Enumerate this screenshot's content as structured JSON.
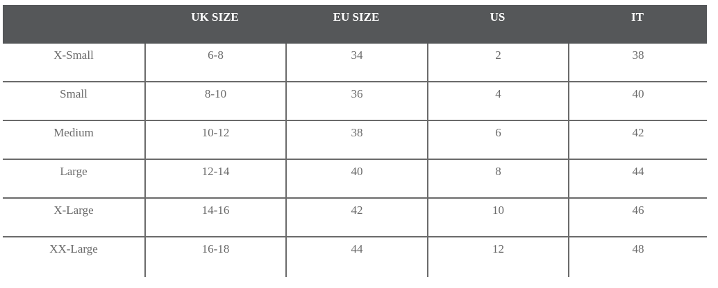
{
  "headers": [
    "",
    "UK SIZE",
    "EU SIZE",
    "US",
    "IT"
  ],
  "rows": [
    [
      "X-Small",
      "6-8",
      "34",
      "2",
      "38"
    ],
    [
      "Small",
      "8-10",
      "36",
      "4",
      "40"
    ],
    [
      "Medium",
      "10-12",
      "38",
      "6",
      "42"
    ],
    [
      "Large",
      "12-14",
      "40",
      "8",
      "44"
    ],
    [
      "X-Large",
      "14-16",
      "42",
      "10",
      "46"
    ],
    [
      "XX-Large",
      "16-18",
      "44",
      "12",
      "48"
    ]
  ],
  "colors": {
    "header_bg": "#555759",
    "header_text": "#ffffff",
    "cell_text": "#6b6b6b",
    "grid": "#6a6a6a"
  }
}
